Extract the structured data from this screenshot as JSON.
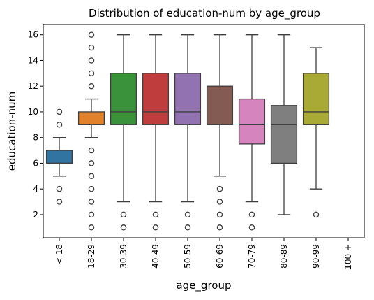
{
  "chart_data": {
    "type": "boxplot",
    "title": "Distribution of education-num by age_group",
    "xlabel": "age_group",
    "ylabel": "education-num",
    "ylim": [
      0.2,
      16.8
    ],
    "yticks": [
      2,
      4,
      6,
      8,
      10,
      12,
      14,
      16
    ],
    "grid": false,
    "categories": [
      "< 18",
      "18-29",
      "30-39",
      "40-49",
      "50-59",
      "60-69",
      "70-79",
      "80-89",
      "90-99",
      "100 +"
    ],
    "boxes": [
      {
        "category": "< 18",
        "q1": 6,
        "median": 6,
        "q3": 7,
        "whisker_low": 5,
        "whisker_high": 8,
        "outliers": [
          3,
          4,
          9,
          10
        ],
        "color": "#3274a1"
      },
      {
        "category": "18-29",
        "q1": 9,
        "median": 9,
        "q3": 10,
        "whisker_low": 8,
        "whisker_high": 11,
        "outliers": [
          1,
          2,
          3,
          4,
          5,
          6,
          7,
          12,
          13,
          14,
          15,
          16
        ],
        "color": "#e1812c"
      },
      {
        "category": "30-39",
        "q1": 9,
        "median": 10,
        "q3": 13,
        "whisker_low": 3,
        "whisker_high": 16,
        "outliers": [
          1,
          2
        ],
        "color": "#3a923a"
      },
      {
        "category": "40-49",
        "q1": 9,
        "median": 10,
        "q3": 13,
        "whisker_low": 3,
        "whisker_high": 16,
        "outliers": [
          1,
          2
        ],
        "color": "#c03d3e"
      },
      {
        "category": "50-59",
        "q1": 9,
        "median": 10,
        "q3": 13,
        "whisker_low": 3,
        "whisker_high": 16,
        "outliers": [
          1,
          2
        ],
        "color": "#9372b2"
      },
      {
        "category": "60-69",
        "q1": 9,
        "median": 9,
        "q3": 12,
        "whisker_low": 5,
        "whisker_high": 16,
        "outliers": [
          1,
          2,
          3,
          4
        ],
        "color": "#845b53"
      },
      {
        "category": "70-79",
        "q1": 7.5,
        "median": 9,
        "q3": 11,
        "whisker_low": 3,
        "whisker_high": 16,
        "outliers": [
          1,
          2
        ],
        "color": "#d684bd"
      },
      {
        "category": "80-89",
        "q1": 6,
        "median": 9,
        "q3": 10.5,
        "whisker_low": 2,
        "whisker_high": 16,
        "outliers": [],
        "color": "#7f7f7f"
      },
      {
        "category": "90-99",
        "q1": 9,
        "median": 10,
        "q3": 13,
        "whisker_low": 4,
        "whisker_high": 15,
        "outliers": [
          2
        ],
        "color": "#a9aa35"
      },
      {
        "category": "100 +",
        "q1": null,
        "median": null,
        "q3": null,
        "whisker_low": null,
        "whisker_high": null,
        "outliers": [],
        "color": "#2eb5c7"
      }
    ]
  }
}
